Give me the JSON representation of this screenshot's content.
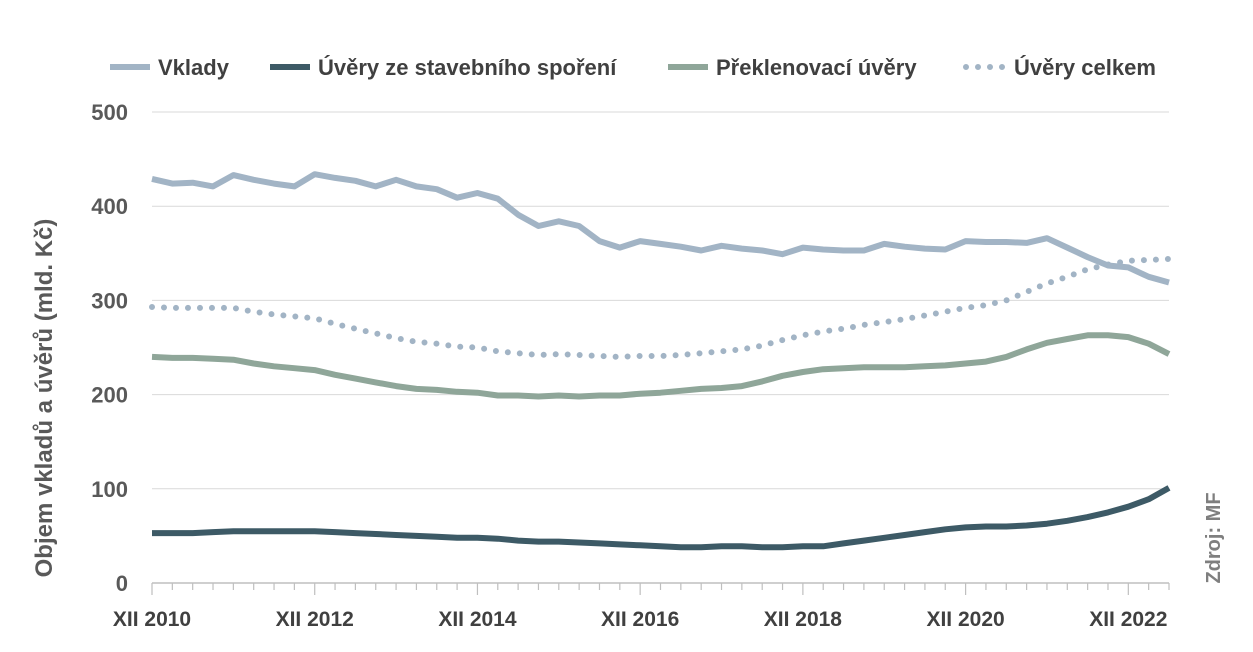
{
  "chart_data": {
    "type": "line",
    "ylabel": "Objem vkladů a úvěrů  (mld. Kč)",
    "source": "Zdroj: MF",
    "ylim": [
      0,
      500
    ],
    "yticks": [
      0,
      100,
      200,
      300,
      400,
      500
    ],
    "xticks": [
      "XII 2010",
      "XII 2012",
      "XII 2014",
      "XII 2016",
      "XII 2018",
      "XII 2020",
      "XII 2022"
    ],
    "x_start": "XII 2010",
    "x_end": "VI 2023",
    "x_step": "quarter",
    "grid": true,
    "legend_position": "top",
    "series": [
      {
        "name": "Vklady",
        "color": "#a2b4c5",
        "style": "solid",
        "values": [
          429,
          424,
          425,
          421,
          433,
          428,
          424,
          421,
          434,
          430,
          427,
          421,
          428,
          421,
          418,
          409,
          414,
          408,
          391,
          379,
          384,
          379,
          363,
          356,
          363,
          360,
          357,
          353,
          358,
          355,
          353,
          349,
          356,
          354,
          353,
          353,
          360,
          357,
          355,
          354,
          363,
          362,
          362,
          361,
          366,
          356,
          346,
          337,
          335,
          325,
          319
        ]
      },
      {
        "name": "Úvěry ze stavebního spoření",
        "color": "#3d5a66",
        "style": "solid",
        "values": [
          53,
          53,
          53,
          54,
          55,
          55,
          55,
          55,
          55,
          54,
          53,
          52,
          51,
          50,
          49,
          48,
          48,
          47,
          45,
          44,
          44,
          43,
          42,
          41,
          40,
          39,
          38,
          38,
          39,
          39,
          38,
          38,
          39,
          39,
          42,
          45,
          48,
          51,
          54,
          57,
          59,
          60,
          60,
          61,
          63,
          66,
          70,
          75,
          81,
          89,
          101
        ]
      },
      {
        "name": "Překlenovací úvěry",
        "color": "#8fa699",
        "style": "solid",
        "values": [
          240,
          239,
          239,
          238,
          237,
          233,
          230,
          228,
          226,
          221,
          217,
          213,
          209,
          206,
          205,
          203,
          202,
          199,
          199,
          198,
          199,
          198,
          199,
          199,
          201,
          202,
          204,
          206,
          207,
          209,
          214,
          220,
          224,
          227,
          228,
          229,
          229,
          229,
          230,
          231,
          233,
          235,
          240,
          248,
          255,
          259,
          263,
          263,
          261,
          254,
          243
        ]
      },
      {
        "name": "Úvěry celkem",
        "color": "#a2b4c5",
        "style": "dotted",
        "values": [
          293,
          292,
          292,
          292,
          292,
          288,
          285,
          283,
          281,
          275,
          270,
          265,
          260,
          256,
          254,
          251,
          250,
          246,
          244,
          242,
          243,
          242,
          241,
          240,
          241,
          241,
          242,
          244,
          246,
          248,
          252,
          258,
          263,
          267,
          270,
          274,
          277,
          280,
          284,
          288,
          292,
          295,
          300,
          309,
          318,
          325,
          333,
          338,
          342,
          343,
          344
        ]
      }
    ]
  }
}
